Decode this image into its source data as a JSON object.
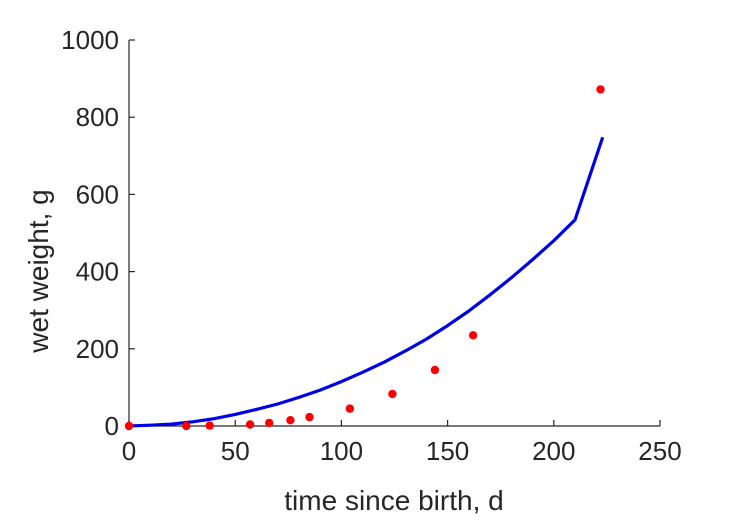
{
  "chart_data": {
    "type": "scatter",
    "title": "",
    "xlabel": "time since birth, d",
    "ylabel": "wet weight, g",
    "xlim": [
      0,
      250
    ],
    "ylim": [
      0,
      1000
    ],
    "xticks": [
      0,
      50,
      100,
      150,
      200,
      250
    ],
    "yticks": [
      0,
      200,
      400,
      600,
      800,
      1000
    ],
    "xtick_labels": [
      "0",
      "50",
      "100",
      "150",
      "200",
      "250"
    ],
    "ytick_labels": [
      "0",
      "200",
      "400",
      "600",
      "800",
      "1000"
    ],
    "grid": false,
    "series": [
      {
        "type": "scatter",
        "color": "#ff0000",
        "x": [
          0,
          27,
          38,
          57,
          66,
          76,
          85,
          104,
          124,
          144,
          162,
          222
        ],
        "y": [
          0,
          0,
          1,
          4,
          8,
          15,
          23,
          45,
          83,
          145,
          235,
          872
        ]
      },
      {
        "type": "line",
        "color": "#0000e6",
        "x": [
          0,
          10,
          20,
          30,
          40,
          50,
          60,
          70,
          80,
          90,
          100,
          110,
          120,
          130,
          140,
          150,
          160,
          170,
          180,
          190,
          200,
          210,
          223
        ],
        "y": [
          0,
          2,
          5,
          11,
          19,
          30,
          43,
          57,
          74,
          93,
          115,
          139,
          165,
          194,
          225,
          260,
          298,
          340,
          384,
          431,
          480,
          534,
          748
        ]
      }
    ]
  }
}
